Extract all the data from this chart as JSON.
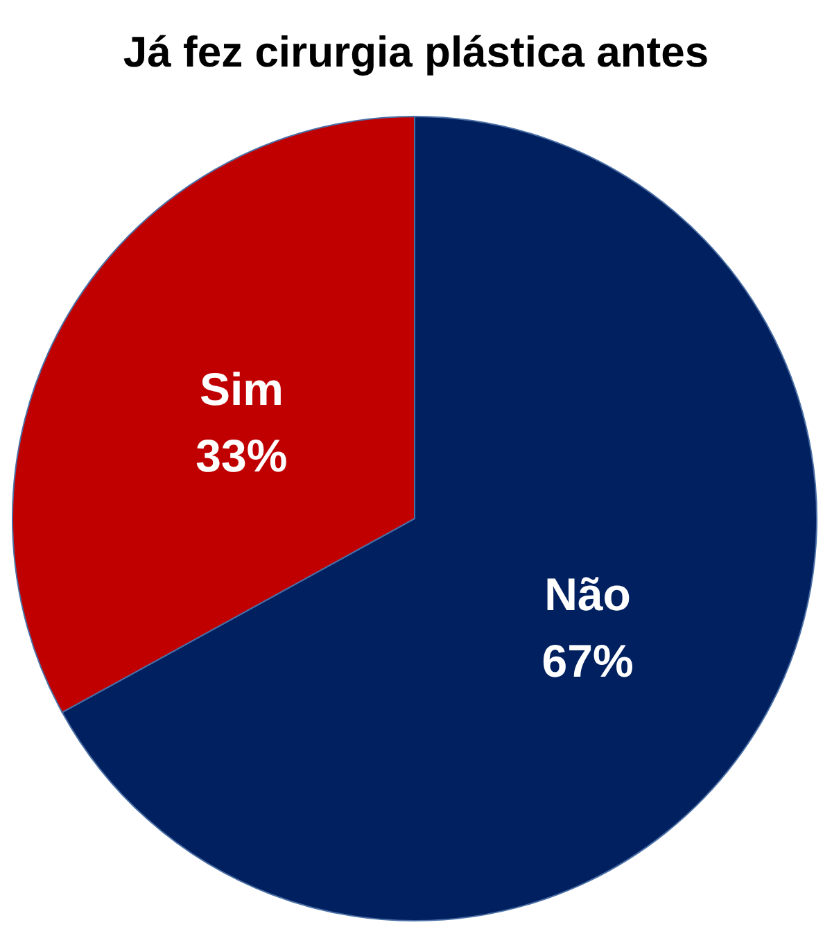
{
  "chart_data": {
    "type": "pie",
    "title": "Já fez cirurgia plástica antes",
    "categories": [
      "Não",
      "Sim"
    ],
    "values": [
      67,
      33
    ],
    "colors": [
      "#002060",
      "#c00000"
    ],
    "value_labels": [
      "67%",
      "33%"
    ],
    "legend": false
  }
}
